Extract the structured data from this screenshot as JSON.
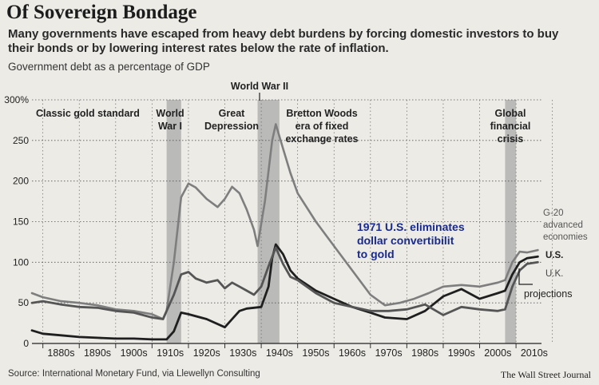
{
  "title": "Of Sovereign Bondage",
  "subtitle": "Many governments have escaped from heavy debt burdens by forcing domestic investors to buy their bonds or by lowering interest rates below the rate of inflation.",
  "ylabel": "Government debt as a percentage of GDP",
  "source": "Source: International Monetary Fund, via Llewellyn Consulting",
  "credit": "The Wall Street Journal",
  "colors": {
    "g20": "#7e7e7e",
    "us": "#1f1f1f",
    "uk": "#555555",
    "shade": "#a9a9a9",
    "annotation_blue": "#1a2a8c"
  },
  "chart_data": {
    "type": "line",
    "xlim": [
      1877,
      2017
    ],
    "ylim": [
      0,
      300
    ],
    "yticks": [
      "0",
      "50",
      "100",
      "150",
      "200",
      "250",
      "300%"
    ],
    "xtick_labels": [
      "1880s",
      "1890s",
      "1900s",
      "1910s",
      "1920s",
      "1930s",
      "1940s",
      "1950s",
      "1960s",
      "1970s",
      "1980s",
      "1990s",
      "2000s",
      "2010s"
    ],
    "grid": true,
    "shaded_periods": [
      {
        "label": "World War I",
        "lines": [
          "World",
          "War I"
        ],
        "start": 1914,
        "end": 1918
      },
      {
        "label": "World War II",
        "lines": [
          "World War II"
        ],
        "start": 1939,
        "end": 1945
      },
      {
        "label": "Global financial crisis",
        "lines": [
          "Global",
          "financial",
          "crisis"
        ],
        "start": 2007,
        "end": 2010
      }
    ],
    "annotations": [
      {
        "lines": [
          "Classic gold standard"
        ]
      },
      {
        "lines": [
          "Great",
          "Depression"
        ]
      },
      {
        "lines": [
          "Bretton Woods",
          "era of fixed",
          "exchange rates"
        ]
      },
      {
        "lines": [
          "1971 U.S. eliminates",
          "dollar convertibilit",
          "to gold"
        ]
      },
      {
        "lines": [
          "projections"
        ]
      }
    ],
    "series": [
      {
        "name": "G-20 advanced economies",
        "label_lines": [
          "G-20",
          "advanced",
          "economies"
        ],
        "color": "#7e7e7e",
        "x": [
          1877,
          1880,
          1885,
          1890,
          1895,
          1900,
          1905,
          1910,
          1913,
          1914,
          1916,
          1918,
          1920,
          1922,
          1925,
          1928,
          1930,
          1932,
          1934,
          1936,
          1938,
          1939,
          1941,
          1943,
          1944,
          1946,
          1948,
          1950,
          1955,
          1960,
          1965,
          1970,
          1974,
          1978,
          1982,
          1986,
          1990,
          1995,
          2000,
          2005,
          2007,
          2009,
          2011,
          2013,
          2016
        ],
        "y": [
          62,
          57,
          52,
          50,
          47,
          42,
          40,
          36,
          30,
          40,
          100,
          180,
          197,
          192,
          178,
          168,
          178,
          193,
          185,
          165,
          140,
          120,
          175,
          250,
          270,
          240,
          210,
          185,
          150,
          120,
          90,
          60,
          47,
          50,
          55,
          62,
          70,
          72,
          70,
          75,
          78,
          100,
          113,
          112,
          115
        ]
      },
      {
        "name": "U.S.",
        "label_lines": [
          "U.S."
        ],
        "color": "#1f1f1f",
        "x": [
          1877,
          1880,
          1885,
          1890,
          1895,
          1900,
          1905,
          1910,
          1913,
          1914,
          1916,
          1918,
          1920,
          1925,
          1930,
          1932,
          1934,
          1936,
          1938,
          1940,
          1942,
          1943,
          1944,
          1946,
          1948,
          1950,
          1955,
          1960,
          1965,
          1970,
          1974,
          1980,
          1985,
          1990,
          1995,
          2000,
          2005,
          2007,
          2009,
          2011,
          2013,
          2016
        ],
        "y": [
          16,
          12,
          10,
          8,
          7,
          6,
          6,
          5,
          5,
          5,
          15,
          38,
          36,
          30,
          20,
          30,
          40,
          43,
          44,
          45,
          70,
          105,
          122,
          110,
          90,
          80,
          65,
          55,
          45,
          38,
          32,
          30,
          40,
          58,
          67,
          55,
          62,
          65,
          85,
          100,
          105,
          107
        ]
      },
      {
        "name": "U.K.",
        "label_lines": [
          "U.K."
        ],
        "color": "#555555",
        "x": [
          1877,
          1880,
          1885,
          1890,
          1895,
          1900,
          1905,
          1910,
          1913,
          1914,
          1916,
          1918,
          1920,
          1922,
          1925,
          1928,
          1930,
          1932,
          1934,
          1936,
          1938,
          1940,
          1942,
          1944,
          1946,
          1948,
          1950,
          1955,
          1960,
          1965,
          1970,
          1975,
          1980,
          1985,
          1990,
          1995,
          2000,
          2005,
          2007,
          2009,
          2011,
          2013,
          2016
        ],
        "y": [
          50,
          52,
          48,
          45,
          44,
          40,
          38,
          32,
          30,
          40,
          60,
          85,
          88,
          80,
          75,
          78,
          68,
          75,
          70,
          65,
          60,
          70,
          95,
          118,
          98,
          82,
          78,
          62,
          50,
          45,
          40,
          40,
          42,
          48,
          35,
          45,
          42,
          40,
          42,
          70,
          90,
          98,
          100
        ]
      }
    ]
  }
}
